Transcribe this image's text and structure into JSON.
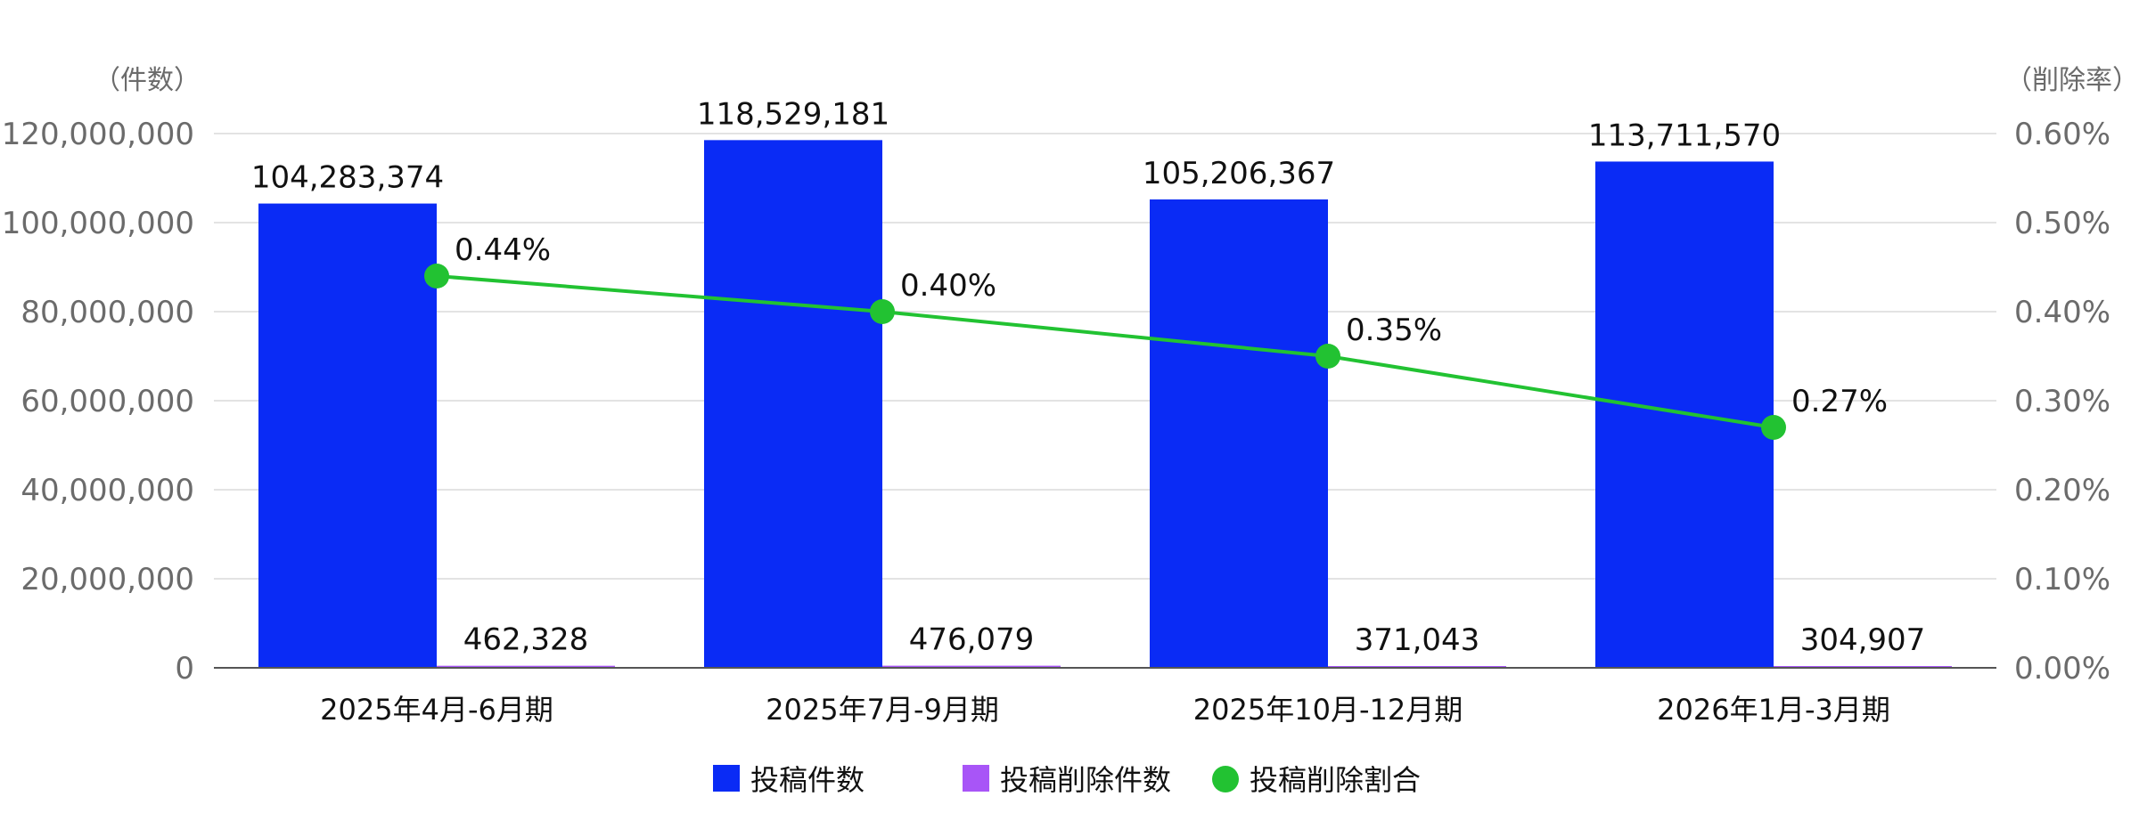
{
  "chart_data": {
    "type": "bar",
    "categories": [
      "2025年4月-6月期",
      "2025年7月-9月期",
      "2025年10月-12月期",
      "2026年1月-3月期"
    ],
    "series": [
      {
        "name": "投稿件数",
        "kind": "bar",
        "axis": "left",
        "color": "#0a2bf5",
        "values": [
          104283374,
          118529181,
          105206367,
          113711570
        ],
        "labels": [
          "104,283,374",
          "118,529,181",
          "105,206,367",
          "113,711,570"
        ]
      },
      {
        "name": "投稿削除件数",
        "kind": "bar",
        "axis": "left",
        "color": "#a855f7",
        "values": [
          462328,
          476079,
          371043,
          304907
        ],
        "labels": [
          "462,328",
          "476,079",
          "371,043",
          "304,907"
        ]
      },
      {
        "name": "投稿削除割合",
        "kind": "line",
        "axis": "right",
        "color": "#22c232",
        "values": [
          0.44,
          0.4,
          0.35,
          0.27
        ],
        "labels": [
          "0.44%",
          "0.40%",
          "0.35%",
          "0.27%"
        ]
      }
    ],
    "y_left": {
      "unit_label": "（件数）",
      "ylim": [
        0,
        120000000
      ],
      "ticks": [
        0,
        20000000,
        40000000,
        60000000,
        80000000,
        100000000,
        120000000
      ],
      "tick_labels": [
        "0",
        "20,000,000",
        "40,000,000",
        "60,000,000",
        "80,000,000",
        "100,000,000",
        "120,000,000"
      ]
    },
    "y_right": {
      "unit_label": "（削除率）",
      "ylim": [
        0,
        0.6
      ],
      "ticks": [
        0,
        0.1,
        0.2,
        0.3,
        0.4,
        0.5,
        0.6
      ],
      "tick_labels": [
        "0.00%",
        "0.10%",
        "0.20%",
        "0.30%",
        "0.40%",
        "0.50%",
        "0.60%"
      ]
    },
    "grid": true,
    "legend_position": "bottom-center"
  }
}
